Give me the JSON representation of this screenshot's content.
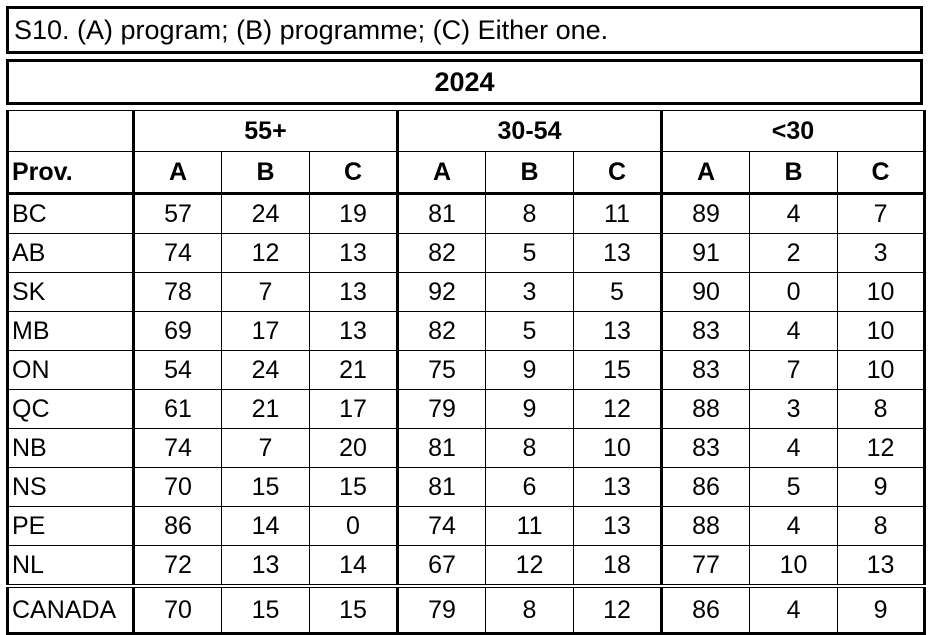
{
  "title": "S10. (A) program; (B) programme; (C) Either one.",
  "year": "2024",
  "age_groups": [
    "55+",
    "30-54",
    "<30"
  ],
  "col_header_first": "Prov.",
  "sub_cols": [
    "A",
    "B",
    "C"
  ],
  "rows": [
    {
      "prov": "BC",
      "vals": [
        "57",
        "24",
        "19",
        "81",
        "8",
        "11",
        "89",
        "4",
        "7"
      ]
    },
    {
      "prov": "AB",
      "vals": [
        "74",
        "12",
        "13",
        "82",
        "5",
        "13",
        "91",
        "2",
        "3"
      ]
    },
    {
      "prov": "SK",
      "vals": [
        "78",
        "7",
        "13",
        "92",
        "3",
        "5",
        "90",
        "0",
        "10"
      ]
    },
    {
      "prov": "MB",
      "vals": [
        "69",
        "17",
        "13",
        "82",
        "5",
        "13",
        "83",
        "4",
        "10"
      ]
    },
    {
      "prov": "ON",
      "vals": [
        "54",
        "24",
        "21",
        "75",
        "9",
        "15",
        "83",
        "7",
        "10"
      ]
    },
    {
      "prov": "QC",
      "vals": [
        "61",
        "21",
        "17",
        "79",
        "9",
        "12",
        "88",
        "3",
        "8"
      ]
    },
    {
      "prov": "NB",
      "vals": [
        "74",
        "7",
        "20",
        "81",
        "8",
        "10",
        "83",
        "4",
        "12"
      ]
    },
    {
      "prov": "NS",
      "vals": [
        "70",
        "15",
        "15",
        "81",
        "6",
        "13",
        "86",
        "5",
        "9"
      ]
    },
    {
      "prov": "PE",
      "vals": [
        "86",
        "14",
        "0",
        "74",
        "11",
        "13",
        "88",
        "4",
        "8"
      ]
    },
    {
      "prov": "NL",
      "vals": [
        "72",
        "13",
        "14",
        "67",
        "12",
        "18",
        "77",
        "10",
        "13"
      ]
    }
  ],
  "total": {
    "prov": "CANADA",
    "vals": [
      "70",
      "15",
      "15",
      "79",
      "8",
      "12",
      "86",
      "4",
      "9"
    ]
  }
}
